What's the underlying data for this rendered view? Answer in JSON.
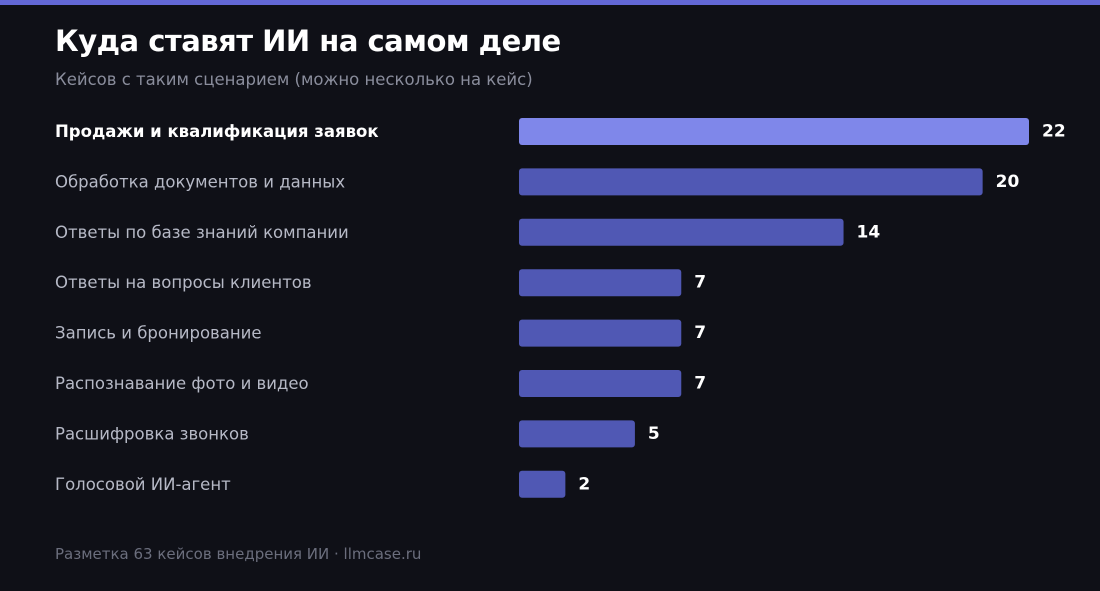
{
  "colors": {
    "accent": "#6368d6",
    "background": "#0f1017",
    "bar_highlight": "#7f87ea",
    "bar": "#5058b4",
    "label_highlight": "#ffffff",
    "label": "#b6b9c6",
    "value": "#ffffff"
  },
  "header": {
    "title": "Куда ставят ИИ на самом деле",
    "subtitle": "Кейсов с таким сценарием (можно несколько на кейс)"
  },
  "chart_data": {
    "type": "bar",
    "orientation": "horizontal",
    "categories": [
      "Продажи и квалификация заявок",
      "Обработка документов и данных",
      "Ответы по базе знаний компании",
      "Ответы на вопросы клиентов",
      "Запись и бронирование",
      "Распознавание фото и видео",
      "Расшифровка звонков",
      "Голосовой ИИ-агент"
    ],
    "values": [
      22,
      20,
      14,
      7,
      7,
      7,
      5,
      2
    ],
    "highlighted_category": "Продажи и квалификация заявок",
    "grid": false,
    "data_labels": true
  },
  "footer": {
    "text": "Разметка 63 кейсов внедрения ИИ · llmcase.ru"
  }
}
